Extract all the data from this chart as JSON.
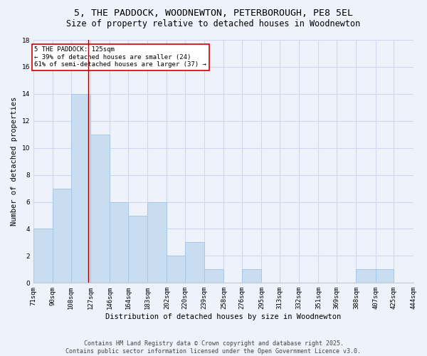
{
  "title_line1": "5, THE PADDOCK, WOODNEWTON, PETERBOROUGH, PE8 5EL",
  "title_line2": "Size of property relative to detached houses in Woodnewton",
  "bins": [
    71,
    90,
    108,
    127,
    146,
    164,
    183,
    202,
    220,
    239,
    258,
    276,
    295,
    313,
    332,
    351,
    369,
    388,
    407,
    425,
    444
  ],
  "counts": [
    4,
    7,
    14,
    11,
    6,
    5,
    6,
    2,
    3,
    1,
    0,
    1,
    0,
    0,
    0,
    0,
    0,
    1,
    1,
    0
  ],
  "bar_facecolor": "#c9ddf0",
  "bar_edgecolor": "#a8c8e8",
  "vline_x": 125,
  "vline_color": "#990000",
  "annotation_text": "5 THE PADDOCK: 125sqm\n← 39% of detached houses are smaller (24)\n61% of semi-detached houses are larger (37) →",
  "annotation_box_edgecolor": "#cc0000",
  "xlabel": "Distribution of detached houses by size in Woodnewton",
  "ylabel": "Number of detached properties",
  "ylim": [
    0,
    18
  ],
  "yticks": [
    0,
    2,
    4,
    6,
    8,
    10,
    12,
    14,
    16,
    18
  ],
  "fig_facecolor": "#eef2fa",
  "ax_facecolor": "#eef2fa",
  "grid_color": "#d0d8f0",
  "footer_line1": "Contains HM Land Registry data © Crown copyright and database right 2025.",
  "footer_line2": "Contains public sector information licensed under the Open Government Licence v3.0.",
  "title_fontsize": 9.5,
  "subtitle_fontsize": 8.5,
  "axis_label_fontsize": 7.5,
  "tick_fontsize": 6.5,
  "footer_fontsize": 6.0,
  "annotation_fontsize": 6.5
}
